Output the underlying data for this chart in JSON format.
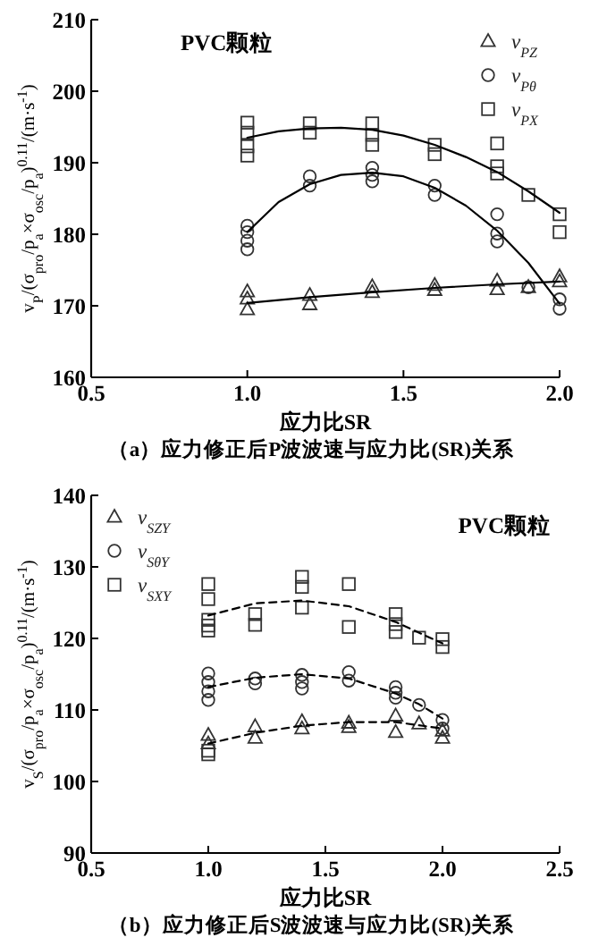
{
  "chart_data": [
    {
      "type": "scatter",
      "xlabel": "应力比SR",
      "ylabel": "v$_{P}$/(σ$_{pro}$/p$_{a}$×σ$_{osc}$/p$_{a}$)$^{0.11}$/(m·s$^{-1}$)",
      "xlim": [
        0.5,
        2.0
      ],
      "xticks": [
        {
          "value": 0.5,
          "label": "0.5"
        },
        {
          "value": 1,
          "label": "1.0"
        },
        {
          "value": 1.5,
          "label": "1.5"
        },
        {
          "value": 2,
          "label": "2.0"
        }
      ],
      "ylim": [
        160,
        210
      ],
      "yticks": [
        160,
        170,
        180,
        190,
        200,
        210
      ],
      "grid": false,
      "legend": "top right",
      "annotations": [
        "PVC颗粒",
        "（a）应力修正后P波波速与应力比(SR)关系"
      ],
      "series": [
        {
          "name": "v$_{PZ}$",
          "marker": "triangle",
          "color": "#333333",
          "x": [
            1.0,
            1.0,
            1.0,
            1.2,
            1.2,
            1.4,
            1.4,
            1.6,
            1.6,
            1.8,
            1.8,
            1.9,
            2.0,
            2.0
          ],
          "values": [
            172.0,
            171.0,
            169.5,
            171.5,
            170.2,
            172.7,
            171.9,
            172.9,
            172.2,
            173.5,
            172.3,
            172.6,
            174.1,
            173.4
          ]
        },
        {
          "name": "v$_{Pθ}$",
          "marker": "circle",
          "color": "#333333",
          "x": [
            1.0,
            1.0,
            1.0,
            1.0,
            1.2,
            1.2,
            1.4,
            1.4,
            1.4,
            1.6,
            1.6,
            1.8,
            1.8,
            1.8,
            1.9,
            2.0,
            2.0
          ],
          "values": [
            181.2,
            180.3,
            179.1,
            177.9,
            188.1,
            186.8,
            189.3,
            188.3,
            187.4,
            186.8,
            185.5,
            182.8,
            180.1,
            179.0,
            172.6,
            170.9,
            169.6
          ]
        },
        {
          "name": "v$_{PX}$",
          "marker": "square",
          "color": "#333333",
          "x": [
            1.0,
            1.0,
            1.0,
            1.0,
            1.2,
            1.2,
            1.4,
            1.4,
            1.4,
            1.6,
            1.6,
            1.8,
            1.8,
            1.8,
            1.9,
            2.0,
            2.0
          ],
          "values": [
            195.6,
            194.2,
            192.3,
            191.0,
            195.5,
            194.2,
            195.5,
            193.9,
            192.5,
            192.5,
            191.2,
            192.7,
            189.5,
            188.5,
            185.5,
            182.8,
            180.3
          ]
        },
        {
          "type": "line",
          "marker": "none",
          "line_style": "solid",
          "color": "#000000",
          "x": [
            1.0,
            1.2,
            1.4,
            1.6,
            1.8,
            2.0
          ],
          "values": [
            170.4,
            171.2,
            171.9,
            172.5,
            173.0,
            173.4
          ]
        },
        {
          "type": "line",
          "marker": "none",
          "line_style": "solid",
          "color": "#000000",
          "x": [
            1.0,
            1.1,
            1.2,
            1.3,
            1.4,
            1.5,
            1.6,
            1.7,
            1.8,
            1.9,
            2.0
          ],
          "values": [
            180.3,
            184.5,
            187.0,
            188.3,
            188.6,
            188.1,
            186.5,
            184.0,
            180.5,
            176.0,
            170.3
          ]
        },
        {
          "type": "line",
          "marker": "none",
          "line_style": "solid",
          "color": "#000000",
          "x": [
            1.0,
            1.1,
            1.2,
            1.3,
            1.4,
            1.5,
            1.6,
            1.7,
            1.8,
            1.9,
            2.0
          ],
          "values": [
            193.5,
            194.4,
            194.8,
            194.9,
            194.6,
            193.8,
            192.5,
            190.8,
            188.7,
            186.0,
            183.0
          ]
        }
      ]
    },
    {
      "type": "scatter",
      "xlabel": "应力比SR",
      "ylabel": "v$_{S}$/(σ$_{pro}$/p$_{a}$×σ$_{osc}$/p$_{a}$)$^{0.11}$/(m·s$^{-1}$)",
      "xlim": [
        0.5,
        2.5
      ],
      "xticks": [
        {
          "value": 0.5,
          "label": "0.5"
        },
        {
          "value": 1,
          "label": "1.0"
        },
        {
          "value": 1.5,
          "label": "1.5"
        },
        {
          "value": 2,
          "label": "2.0"
        },
        {
          "value": 2.5,
          "label": "2.5"
        }
      ],
      "ylim": [
        90,
        140
      ],
      "yticks": [
        90,
        100,
        110,
        120,
        130,
        140
      ],
      "grid": false,
      "legend": "top left",
      "annotations": [
        "PVC颗粒",
        "（b）应力修正后S波波速与应力比(SR)关系"
      ],
      "series": [
        {
          "name": "v$_{SZY}$",
          "marker": "triangle",
          "color": "#333333",
          "x": [
            1.0,
            1.0,
            1.2,
            1.2,
            1.4,
            1.4,
            1.6,
            1.6,
            1.8,
            1.8,
            1.9,
            2.0,
            2.0
          ],
          "values": [
            106.5,
            105.3,
            107.7,
            106.1,
            108.4,
            107.4,
            108.2,
            107.6,
            109.2,
            106.9,
            108.1,
            107.1,
            106.1
          ]
        },
        {
          "name": "v$_{SθY}$",
          "marker": "circle",
          "color": "#333333",
          "x": [
            1.0,
            1.0,
            1.0,
            1.0,
            1.2,
            1.2,
            1.4,
            1.4,
            1.4,
            1.6,
            1.6,
            1.8,
            1.8,
            1.8,
            1.9,
            2.0,
            2.0
          ],
          "values": [
            115.1,
            113.9,
            112.6,
            111.4,
            114.4,
            113.7,
            114.9,
            113.9,
            113.0,
            115.3,
            114.1,
            113.2,
            112.4,
            111.7,
            110.7,
            108.6,
            107.4
          ]
        },
        {
          "name": "v$_{SXY}$",
          "marker": "square",
          "color": "#333333",
          "x": [
            1.0,
            1.0,
            1.0,
            1.0,
            1.0,
            1.0,
            1.0,
            1.2,
            1.2,
            1.4,
            1.4,
            1.4,
            1.6,
            1.6,
            1.8,
            1.8,
            1.8,
            1.9,
            2.0,
            2.0
          ],
          "values": [
            127.6,
            125.5,
            122.6,
            121.8,
            121.1,
            104.3,
            103.8,
            123.4,
            121.9,
            128.6,
            127.2,
            124.3,
            127.6,
            121.6,
            123.4,
            122.0,
            120.9,
            120.1,
            119.9,
            118.8
          ]
        },
        {
          "type": "line",
          "marker": "none",
          "line_style": "dashed",
          "color": "#000000",
          "x": [
            1.0,
            1.2,
            1.4,
            1.6,
            1.8,
            2.0
          ],
          "values": [
            105.3,
            106.8,
            107.8,
            108.3,
            108.3,
            107.4
          ]
        },
        {
          "type": "line",
          "marker": "none",
          "line_style": "dashed",
          "color": "#000000",
          "x": [
            1.0,
            1.2,
            1.4,
            1.6,
            1.8,
            1.9,
            2.0
          ],
          "values": [
            113.2,
            114.5,
            115.0,
            114.4,
            112.3,
            110.8,
            108.8
          ]
        },
        {
          "type": "line",
          "marker": "none",
          "line_style": "dashed",
          "color": "#000000",
          "x": [
            1.0,
            1.2,
            1.4,
            1.6,
            1.8,
            2.0
          ],
          "values": [
            123.2,
            124.9,
            125.3,
            124.5,
            122.3,
            119.3
          ]
        }
      ]
    }
  ]
}
